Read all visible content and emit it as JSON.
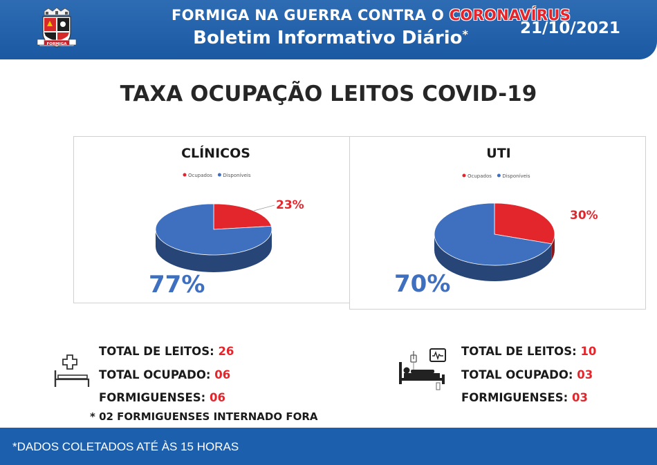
{
  "header": {
    "line1_prefix": "FORMIGA NA GUERRA CONTRA O ",
    "line1_accent": "CORONAVÍRUS",
    "line2": "Boletim Informativo Diário",
    "line2_mark": "*",
    "date": "21/10/2021",
    "crest_text": "FORMIGA"
  },
  "main_title": "TAXA OCUPAÇÃO LEITOS COVID-19",
  "chart_data": [
    {
      "type": "pie",
      "title": "CLÍNICOS",
      "categories": [
        "Ocupados",
        "Disponíveis"
      ],
      "values": [
        23,
        77
      ],
      "labels": [
        "23%",
        "77%"
      ],
      "colors": [
        "#e3262c",
        "#3f6fbf"
      ],
      "legend_position": "top"
    },
    {
      "type": "pie",
      "title": "UTI",
      "categories": [
        "Ocupados",
        "Disponíveis"
      ],
      "values": [
        30,
        70
      ],
      "labels": [
        "30%",
        "70%"
      ],
      "colors": [
        "#e3262c",
        "#3f6fbf"
      ],
      "legend_position": "top"
    }
  ],
  "clinicos_stats": {
    "rows": [
      {
        "label": "TOTAL DE LEITOS: ",
        "value": "26"
      },
      {
        "label": "TOTAL OCUPADO: ",
        "value": "06"
      },
      {
        "label": "FORMIGUENSES: ",
        "value": "06"
      }
    ],
    "icon": "hospital-bed-cross-icon"
  },
  "uti_stats": {
    "rows": [
      {
        "label": "TOTAL DE LEITOS: ",
        "value": "10"
      },
      {
        "label": "TOTAL OCUPADO: ",
        "value": "03"
      },
      {
        "label": "FORMIGUENSES: ",
        "value": "03"
      }
    ],
    "icon": "icu-bed-monitor-icon"
  },
  "note": "* 02 FORMIGUENSES INTERNADO FORA",
  "footer": "*DADOS COLETADOS ATÉ ÀS 15 HORAS",
  "colors": {
    "brand_blue": "#1c5fad",
    "accent_red": "#e3262c",
    "slice_blue": "#3f6fbf"
  }
}
